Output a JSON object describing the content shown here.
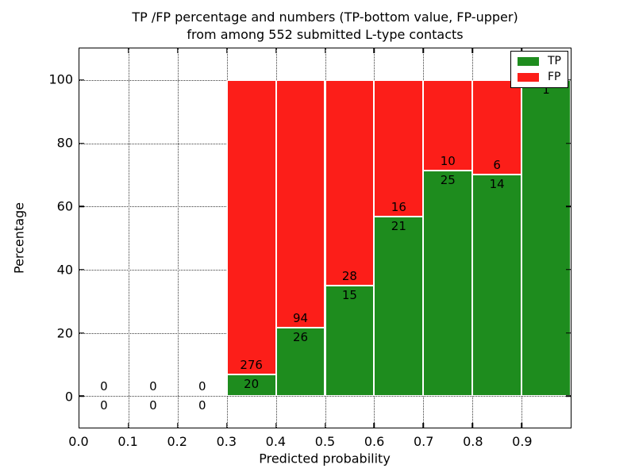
{
  "figure": {
    "title_line1": "TP /FP percentage and numbers (TP-bottom value, FP-upper)",
    "title_line2": "from among 552 submitted L-type contacts",
    "xlabel": "Predicted probability",
    "ylabel": "Percentage"
  },
  "colors": {
    "tp": "#1e8c1e",
    "fp": "#fc1e19",
    "bar_edge": "#ffffff",
    "grid": "#3a3a3a",
    "text": "#000000",
    "background": "#ffffff"
  },
  "chart_data": {
    "type": "bar",
    "stacked": true,
    "normalized_to_percent": 100,
    "title": "TP /FP percentage and numbers (TP-bottom value, FP-upper) from among 552 submitted L-type contacts",
    "xlabel": "Predicted probability",
    "ylabel": "Percentage",
    "xlim": [
      0.0,
      1.0
    ],
    "ylim": [
      -10,
      110
    ],
    "x_ticks": [
      "0.0",
      "0.1",
      "0.2",
      "0.3",
      "0.4",
      "0.5",
      "0.6",
      "0.7",
      "0.8",
      "0.9"
    ],
    "y_ticks": [
      "0",
      "20",
      "40",
      "60",
      "80",
      "100"
    ],
    "grid": true,
    "total_contacts": 552,
    "legend": {
      "position": "upper right",
      "entries": [
        {
          "label": "TP",
          "color": "#1e8c1e"
        },
        {
          "label": "FP",
          "color": "#fc1e19"
        }
      ]
    },
    "bins": [
      {
        "x_start": 0.0,
        "x_end": 0.1,
        "tp": 0,
        "fp": 0,
        "tp_pct": 0
      },
      {
        "x_start": 0.1,
        "x_end": 0.2,
        "tp": 0,
        "fp": 0,
        "tp_pct": 0
      },
      {
        "x_start": 0.2,
        "x_end": 0.3,
        "tp": 0,
        "fp": 0,
        "tp_pct": 0
      },
      {
        "x_start": 0.3,
        "x_end": 0.4,
        "tp": 20,
        "fp": 276,
        "tp_pct": 6.757
      },
      {
        "x_start": 0.4,
        "x_end": 0.5,
        "tp": 26,
        "fp": 94,
        "tp_pct": 21.667
      },
      {
        "x_start": 0.5,
        "x_end": 0.6,
        "tp": 15,
        "fp": 28,
        "tp_pct": 34.884
      },
      {
        "x_start": 0.6,
        "x_end": 0.7,
        "tp": 21,
        "fp": 16,
        "tp_pct": 56.757
      },
      {
        "x_start": 0.7,
        "x_end": 0.8,
        "tp": 25,
        "fp": 10,
        "tp_pct": 71.429
      },
      {
        "x_start": 0.8,
        "x_end": 0.9,
        "tp": 14,
        "fp": 6,
        "tp_pct": 70.0
      },
      {
        "x_start": 0.9,
        "x_end": 1.0,
        "tp": 1,
        "fp": 0,
        "tp_pct": 100.0
      }
    ]
  }
}
